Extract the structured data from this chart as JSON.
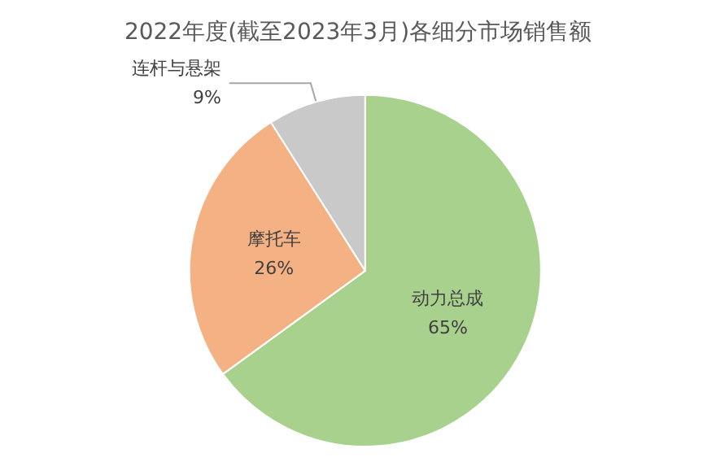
{
  "chart_data": {
    "type": "pie",
    "title": "2022年度(截至2023年3月)各细分市场销售额",
    "categories": [
      "动力总成",
      "摩托车",
      "连杆与悬架"
    ],
    "values": [
      65,
      26,
      9
    ],
    "value_labels": [
      "65%",
      "26%",
      "9%"
    ],
    "colors": [
      "#a9d18e",
      "#f4b183",
      "#c9c9c9"
    ],
    "legend": false
  }
}
